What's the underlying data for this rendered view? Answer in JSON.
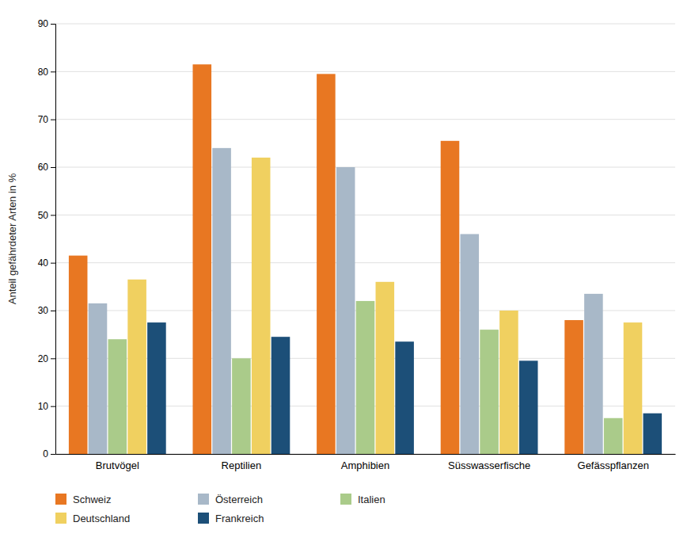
{
  "chart_data": {
    "type": "bar",
    "categories": [
      "Brutvögel",
      "Reptilien",
      "Amphibien",
      "Süsswasserfische",
      "Gefässpflanzen"
    ],
    "series": [
      {
        "name": "Schweiz",
        "color": "#E87722",
        "values": [
          41.5,
          81.5,
          79.5,
          65.5,
          28.0
        ]
      },
      {
        "name": "Österreich",
        "color": "#A8B8C8",
        "values": [
          31.5,
          64.0,
          60.0,
          46.0,
          33.5
        ]
      },
      {
        "name": "Italien",
        "color": "#AACB8A",
        "values": [
          24.0,
          20.0,
          32.0,
          26.0,
          7.5
        ]
      },
      {
        "name": "Deutschland",
        "color": "#F0D060",
        "values": [
          36.5,
          62.0,
          36.0,
          30.0,
          27.5
        ]
      },
      {
        "name": "Frankreich",
        "color": "#1C4F78",
        "values": [
          27.5,
          24.5,
          23.5,
          19.5,
          8.5
        ]
      }
    ],
    "ylabel": "Anteil gefährdeter Arten in %",
    "ylim": [
      0,
      90
    ],
    "yticks": [
      0,
      10,
      20,
      30,
      40,
      50,
      60,
      70,
      80,
      90
    ],
    "grid": true,
    "legend": "bottom"
  }
}
